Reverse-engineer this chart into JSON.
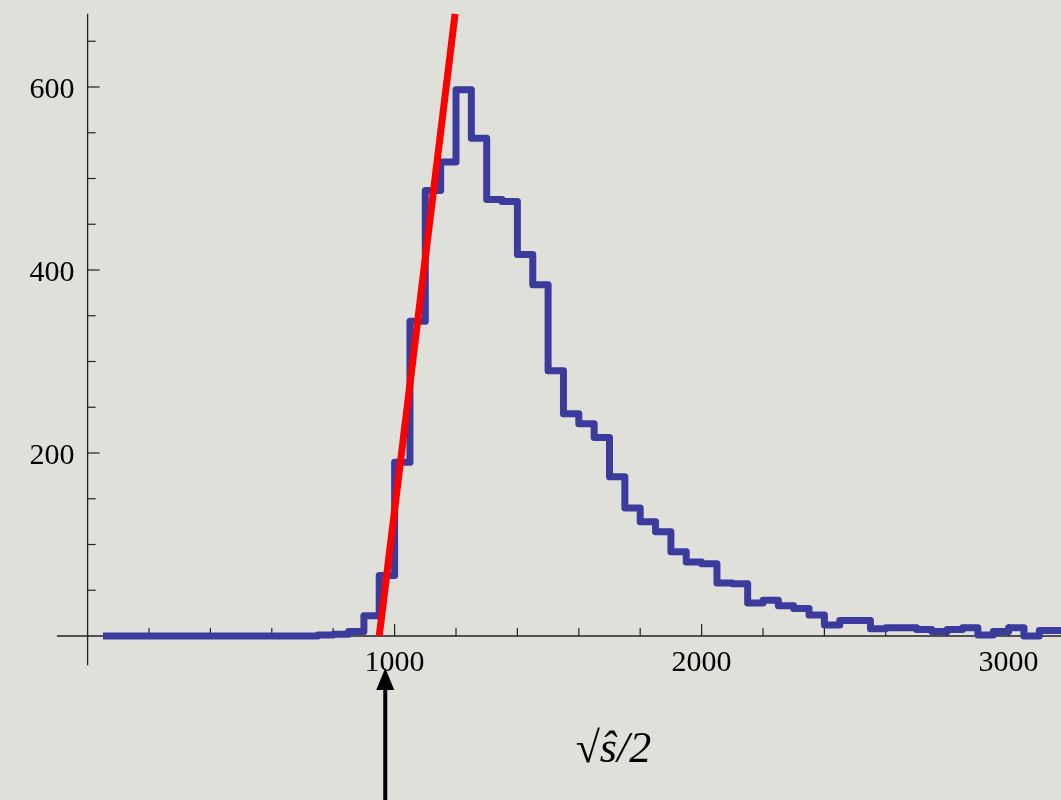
{
  "chart_data": {
    "type": "histogram",
    "xlabel": "√ŝ/2",
    "xlim": [
      -100,
      3200
    ],
    "ylim": [
      -32,
      680
    ],
    "xticks": [
      {
        "value": 200,
        "label": null
      },
      {
        "value": 400,
        "label": null
      },
      {
        "value": 600,
        "label": null
      },
      {
        "value": 800,
        "label": null
      },
      1000,
      {
        "value": 1200,
        "label": null
      },
      {
        "value": 1400,
        "label": null
      },
      {
        "value": 1600,
        "label": null
      },
      {
        "value": 1800,
        "label": null
      },
      2000,
      {
        "value": 2200,
        "label": null
      },
      {
        "value": 2400,
        "label": null
      },
      {
        "value": 2600,
        "label": null
      },
      {
        "value": 2800,
        "label": null
      },
      3000
    ],
    "yticks": [
      {
        "value": 50,
        "label": null
      },
      {
        "value": 100,
        "label": null
      },
      {
        "value": 150,
        "label": null
      },
      200,
      {
        "value": 250,
        "label": null
      },
      {
        "value": 300,
        "label": null
      },
      {
        "value": 350,
        "label": null
      },
      400,
      {
        "value": 450,
        "label": null
      },
      {
        "value": 500,
        "label": null
      },
      {
        "value": 550,
        "label": null
      },
      600,
      {
        "value": 650,
        "label": null
      }
    ],
    "grid": false,
    "series": [
      {
        "color": "#3b3b9e",
        "bins": [
          50,
          100,
          150,
          200,
          250,
          300,
          350,
          400,
          450,
          500,
          550,
          600,
          650,
          700,
          750,
          800,
          850,
          900,
          950,
          1000,
          1050,
          1100,
          1150,
          1200,
          1250,
          1300,
          1350,
          1400,
          1450,
          1500,
          1550,
          1600,
          1650,
          1700,
          1750,
          1800,
          1850,
          1900,
          1950,
          2000,
          2050,
          2100,
          2150,
          2200,
          2250,
          2300,
          2350,
          2400,
          2450,
          2500,
          2550,
          2600,
          2650,
          2700,
          2750,
          2800,
          2850,
          2900,
          2950,
          3000,
          3050,
          3100,
          3150,
          3200
        ],
        "values": [
          0,
          0,
          0,
          0,
          0,
          0,
          0,
          0,
          0,
          0,
          0,
          0,
          0,
          0,
          1,
          2,
          5,
          22,
          66,
          190,
          344,
          487,
          518,
          597,
          544,
          477,
          475,
          417,
          384,
          290,
          243,
          232,
          217,
          174,
          140,
          125,
          114,
          92,
          81,
          79,
          58,
          57,
          36,
          39,
          33,
          30,
          23,
          12,
          17,
          17,
          8,
          9,
          9,
          7,
          5,
          7,
          9,
          1,
          5,
          9,
          0,
          6,
          6
        ]
      },
      {
        "type": "line",
        "color": "#ff0000",
        "x": [
          950,
          1197
        ],
        "values": [
          0,
          680
        ]
      }
    ]
  }
}
